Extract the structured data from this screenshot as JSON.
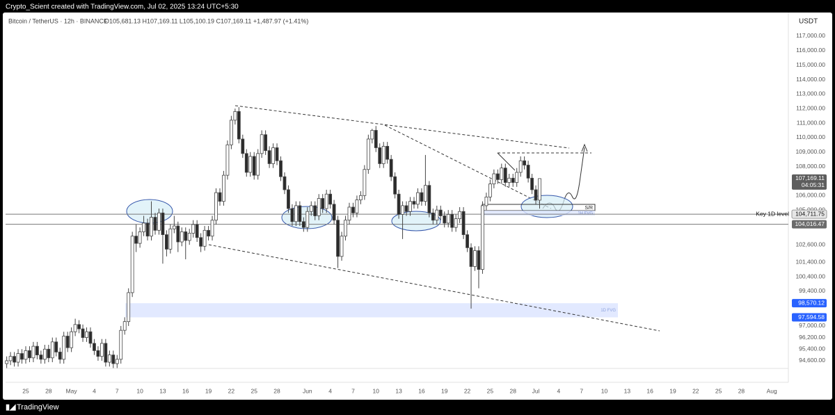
{
  "header": {
    "attribution": "Crypto_Scient created with TradingView.com, Jul 02, 2025 13:24 UTC+5:30"
  },
  "chart_data": {
    "type": "candlestick",
    "title": "Bitcoin / TetherUS · 12h · BINANCE",
    "ohlc_readout": "O105,681.13 H107,169.11 L105,100.19 C107,169.11 +1,487.97 (+1.41%)",
    "currency": "USDT",
    "colors": {
      "up": "#ffffff",
      "down": "#2b2b2b",
      "border": "#444444"
    },
    "x": [
      -2.5,
      -2,
      -1.5,
      -1,
      -0.5,
      0,
      0.5,
      1,
      1.5,
      2,
      2.5,
      3,
      3.5,
      4,
      4.5,
      5,
      5.5,
      6,
      6.5,
      7,
      7.5,
      8,
      8.5,
      9,
      9.5,
      10,
      10.5,
      11,
      11.5,
      12,
      12.5,
      13,
      13.5,
      14,
      14.5,
      15,
      15.5,
      16,
      16.5,
      17,
      17.5,
      18,
      18.5,
      19,
      19.5,
      20,
      20.5,
      21,
      21.5,
      22,
      22.5,
      23,
      23.5,
      24,
      24.5,
      25,
      25.5,
      26,
      26.5,
      27,
      27.5,
      28,
      28.5,
      29,
      29.5,
      30,
      30.5,
      31,
      31.5,
      32,
      32.5,
      33,
      33.5,
      34,
      34.5,
      35,
      35.5,
      36,
      36.5,
      37,
      37.5,
      38,
      38.5,
      39,
      39.5,
      40,
      40.5,
      41,
      41.5,
      42,
      42.5,
      43,
      43.5,
      44,
      44.5,
      45,
      45.5,
      46,
      46.5,
      47,
      47.5,
      48,
      48.5,
      49,
      49.5,
      50,
      50.5,
      51,
      51.5,
      52,
      52.5,
      53,
      53.5,
      54,
      54.5,
      55,
      55.5,
      56,
      56.5,
      57,
      57.5,
      58,
      58.5,
      59,
      59.5,
      60,
      60.5,
      61,
      61.5,
      62,
      62.5,
      63,
      63.5,
      64,
      64.5,
      65,
      65.5,
      66,
      66.5,
      67,
      67.5
    ],
    "ohlc": [
      [
        94400,
        94900,
        94100,
        94600
      ],
      [
        94600,
        95200,
        94300,
        94900
      ],
      [
        94900,
        95200,
        94200,
        94500
      ],
      [
        94500,
        95400,
        94200,
        95100
      ],
      [
        95100,
        95400,
        94400,
        94700
      ],
      [
        94700,
        95600,
        94400,
        95300
      ],
      [
        95300,
        95600,
        94500,
        94800
      ],
      [
        94800,
        95900,
        94500,
        95600
      ],
      [
        95600,
        95900,
        94700,
        95000
      ],
      [
        95000,
        95300,
        94400,
        94700
      ],
      [
        94700,
        95700,
        94400,
        95400
      ],
      [
        95400,
        95700,
        94500,
        94800
      ],
      [
        94800,
        96200,
        94500,
        95900
      ],
      [
        95900,
        96200,
        94900,
        95200
      ],
      [
        95200,
        95500,
        94400,
        94700
      ],
      [
        94700,
        96600,
        94400,
        96300
      ],
      [
        96300,
        96600,
        95200,
        95500
      ],
      [
        95500,
        96900,
        95200,
        96600
      ],
      [
        96600,
        97500,
        96300,
        97100
      ],
      [
        97100,
        97400,
        96500,
        96800
      ],
      [
        96800,
        97100,
        95900,
        96200
      ],
      [
        96200,
        96900,
        95900,
        96600
      ],
      [
        96600,
        96900,
        95500,
        95800
      ],
      [
        95800,
        96100,
        95000,
        95300
      ],
      [
        95300,
        95600,
        94600,
        94900
      ],
      [
        94900,
        96100,
        94600,
        95800
      ],
      [
        95800,
        96100,
        94200,
        94500
      ],
      [
        94500,
        95300,
        94200,
        95000
      ],
      [
        95000,
        95300,
        94100,
        94400
      ],
      [
        94400,
        95000,
        94100,
        94700
      ],
      [
        94700,
        97000,
        94400,
        96700
      ],
      [
        96700,
        97600,
        96400,
        97300
      ],
      [
        97300,
        99600,
        97000,
        99300
      ],
      [
        99300,
        103500,
        99000,
        103200
      ],
      [
        103200,
        104000,
        102100,
        102700
      ],
      [
        102700,
        103800,
        102400,
        103500
      ],
      [
        103500,
        104600,
        103200,
        104100
      ],
      [
        104100,
        104400,
        102900,
        103200
      ],
      [
        103200,
        105600,
        102900,
        104500
      ],
      [
        104500,
        104800,
        103300,
        103600
      ],
      [
        103600,
        105100,
        103300,
        104800
      ],
      [
        104800,
        105100,
        101300,
        103300
      ],
      [
        103300,
        103600,
        101800,
        102300
      ],
      [
        102300,
        104000,
        102000,
        103700
      ],
      [
        103700,
        104600,
        103400,
        103900
      ],
      [
        103900,
        104200,
        102100,
        102800
      ],
      [
        102800,
        103800,
        102500,
        103500
      ],
      [
        103500,
        103800,
        101600,
        102900
      ],
      [
        102900,
        103700,
        102600,
        103400
      ],
      [
        103400,
        104300,
        103100,
        104000
      ],
      [
        104000,
        104300,
        102800,
        103100
      ],
      [
        103100,
        103400,
        102100,
        102500
      ],
      [
        102500,
        103900,
        102200,
        103600
      ],
      [
        103600,
        103900,
        102900,
        103200
      ],
      [
        103200,
        104600,
        102900,
        104300
      ],
      [
        104300,
        106500,
        104000,
        106200
      ],
      [
        106200,
        106500,
        105300,
        105600
      ],
      [
        105600,
        107700,
        105300,
        107400
      ],
      [
        107400,
        109800,
        107100,
        109500
      ],
      [
        109500,
        111500,
        109200,
        111200
      ],
      [
        111200,
        112000,
        110900,
        111800
      ],
      [
        111800,
        112100,
        109600,
        109900
      ],
      [
        109900,
        110200,
        108600,
        108900
      ],
      [
        108900,
        109200,
        107300,
        107600
      ],
      [
        107600,
        109000,
        107300,
        108700
      ],
      [
        108700,
        109000,
        107100,
        107400
      ],
      [
        107400,
        109200,
        107100,
        108900
      ],
      [
        108900,
        110500,
        108600,
        110200
      ],
      [
        110200,
        110500,
        108800,
        109100
      ],
      [
        109100,
        109400,
        107900,
        108200
      ],
      [
        108200,
        109600,
        107900,
        109300
      ],
      [
        109300,
        109600,
        108100,
        108400
      ],
      [
        108400,
        108700,
        107000,
        107300
      ],
      [
        107300,
        107600,
        106100,
        106400
      ],
      [
        106400,
        106700,
        104800,
        105100
      ],
      [
        105100,
        105400,
        103900,
        104200
      ],
      [
        104200,
        105600,
        103900,
        105300
      ],
      [
        105300,
        105600,
        103900,
        104200
      ],
      [
        104200,
        104500,
        103500,
        103800
      ],
      [
        103800,
        105200,
        103500,
        104900
      ],
      [
        104900,
        105600,
        104600,
        105300
      ],
      [
        105300,
        105600,
        104300,
        104600
      ],
      [
        104600,
        106100,
        104300,
        105800
      ],
      [
        105800,
        106100,
        104800,
        105100
      ],
      [
        105100,
        106400,
        104800,
        106100
      ],
      [
        106100,
        106400,
        105100,
        105400
      ],
      [
        105400,
        105700,
        104000,
        104300
      ],
      [
        104300,
        104600,
        101000,
        101800
      ],
      [
        101800,
        103500,
        101500,
        103200
      ],
      [
        103200,
        104600,
        102900,
        104300
      ],
      [
        104300,
        105500,
        104000,
        105200
      ],
      [
        105200,
        105500,
        104500,
        104800
      ],
      [
        104800,
        106000,
        104500,
        105700
      ],
      [
        105700,
        106300,
        105400,
        106000
      ],
      [
        106000,
        108100,
        105700,
        107800
      ],
      [
        107800,
        110200,
        107500,
        109900
      ],
      [
        109900,
        110600,
        109600,
        110500
      ],
      [
        110500,
        110800,
        109000,
        109300
      ],
      [
        109300,
        109600,
        107900,
        108200
      ],
      [
        108200,
        109700,
        107900,
        109400
      ],
      [
        109400,
        109700,
        108200,
        108500
      ],
      [
        108500,
        108800,
        107000,
        107300
      ],
      [
        107300,
        107600,
        105800,
        106100
      ],
      [
        106100,
        106400,
        104400,
        104700
      ],
      [
        104700,
        105600,
        103000,
        105300
      ],
      [
        105300,
        105600,
        104600,
        104900
      ],
      [
        104900,
        105900,
        104600,
        105600
      ],
      [
        105600,
        105900,
        105100,
        105400
      ],
      [
        105400,
        106500,
        105100,
        106200
      ],
      [
        106200,
        106500,
        105300,
        105600
      ],
      [
        105600,
        108800,
        105300,
        106700
      ],
      [
        106700,
        107000,
        104500,
        104800
      ],
      [
        104800,
        105100,
        104000,
        104300
      ],
      [
        104300,
        105300,
        104000,
        105000
      ],
      [
        105000,
        105300,
        104300,
        104600
      ],
      [
        104600,
        104900,
        103800,
        104100
      ],
      [
        104100,
        105000,
        103800,
        104700
      ],
      [
        104700,
        105000,
        103500,
        103800
      ],
      [
        103800,
        104700,
        103500,
        104400
      ],
      [
        104400,
        105200,
        104100,
        104900
      ],
      [
        104900,
        105200,
        103000,
        103300
      ],
      [
        103300,
        103600,
        102100,
        102400
      ],
      [
        102400,
        102700,
        98200,
        101100
      ],
      [
        101100,
        102500,
        100800,
        102200
      ],
      [
        102200,
        102500,
        99600,
        100900
      ],
      [
        100900,
        105600,
        100600,
        105300
      ],
      [
        105300,
        106200,
        105000,
        105900
      ],
      [
        105900,
        107100,
        105600,
        106800
      ],
      [
        106800,
        107800,
        106500,
        107500
      ],
      [
        107500,
        107800,
        106800,
        107100
      ],
      [
        107100,
        108200,
        106800,
        107900
      ],
      [
        107900,
        108200,
        106600,
        106900
      ],
      [
        106900,
        107500,
        106600,
        107200
      ],
      [
        107200,
        107500,
        106600,
        106900
      ],
      [
        106900,
        107900,
        106600,
        107600
      ],
      [
        107600,
        108700,
        107300,
        108400
      ],
      [
        108400,
        108700,
        107800,
        108100
      ],
      [
        108100,
        108400,
        106900,
        107200
      ],
      [
        107200,
        107500,
        106100,
        106400
      ],
      [
        106400,
        106700,
        105400,
        105681.13
      ],
      [
        105681.13,
        107169.11,
        105100.19,
        107169.11
      ]
    ],
    "xlim": [
      -2.65,
      99.9
    ],
    "xticks": [
      {
        "value": 0,
        "label": "25"
      },
      {
        "value": 3,
        "label": "28"
      },
      {
        "value": 6,
        "label": "May"
      },
      {
        "value": 9,
        "label": "4"
      },
      {
        "value": 12,
        "label": "7"
      },
      {
        "value": 15,
        "label": "10"
      },
      {
        "value": 18,
        "label": "13"
      },
      {
        "value": 21,
        "label": "16"
      },
      {
        "value": 24,
        "label": "19"
      },
      {
        "value": 27,
        "label": "22"
      },
      {
        "value": 30,
        "label": "25"
      },
      {
        "value": 33,
        "label": "28"
      },
      {
        "value": 37,
        "label": "Jun"
      },
      {
        "value": 40,
        "label": "4"
      },
      {
        "value": 43,
        "label": "7"
      },
      {
        "value": 46,
        "label": "10"
      },
      {
        "value": 49,
        "label": "13"
      },
      {
        "value": 52,
        "label": "16"
      },
      {
        "value": 55,
        "label": "19"
      },
      {
        "value": 58,
        "label": "22"
      },
      {
        "value": 61,
        "label": "25"
      },
      {
        "value": 64,
        "label": "28"
      },
      {
        "value": 67,
        "label": "Jul"
      },
      {
        "value": 70,
        "label": "4"
      },
      {
        "value": 73,
        "label": "7"
      },
      {
        "value": 76,
        "label": "10"
      },
      {
        "value": 79,
        "label": "13"
      },
      {
        "value": 82,
        "label": "16"
      },
      {
        "value": 85,
        "label": "19"
      },
      {
        "value": 88,
        "label": "22"
      },
      {
        "value": 91,
        "label": "25"
      },
      {
        "value": 94,
        "label": "28"
      },
      {
        "value": 98,
        "label": "Aug"
      }
    ],
    "ylim": [
      94070,
      118630
    ],
    "yticks": [
      {
        "value": 117000,
        "label": "117,000.00"
      },
      {
        "value": 116000,
        "label": "116,000.00"
      },
      {
        "value": 115000,
        "label": "115,000.00"
      },
      {
        "value": 114000,
        "label": "114,000.00"
      },
      {
        "value": 113000,
        "label": "113,000.00"
      },
      {
        "value": 112000,
        "label": "112,000.00"
      },
      {
        "value": 111000,
        "label": "111,000.00"
      },
      {
        "value": 110000,
        "label": "110,000.00"
      },
      {
        "value": 109000,
        "label": "109,000.00"
      },
      {
        "value": 108000,
        "label": "108,000.00"
      },
      {
        "value": 106000,
        "label": "106,000.00"
      },
      {
        "value": 105000,
        "label": "105,000.00"
      },
      {
        "value": 102600,
        "label": "102,600.00"
      },
      {
        "value": 101400,
        "label": "101,400.00"
      },
      {
        "value": 100400,
        "label": "100,400.00"
      },
      {
        "value": 99400,
        "label": "99,400.00"
      },
      {
        "value": 97000,
        "label": "97,000.00"
      },
      {
        "value": 96200,
        "label": "96,200.00"
      },
      {
        "value": 95400,
        "label": "95,400.00"
      },
      {
        "value": 94600,
        "label": "94,600.00"
      }
    ],
    "price_labels": [
      {
        "value": 107169.11,
        "label": "107,169.11",
        "color": "#5d5d5d"
      },
      {
        "value": 104711.75,
        "label": "104,711.75",
        "color": "#e6e6e6"
      },
      {
        "value": 104016.47,
        "label": "104,016.47",
        "color": "#6b6b6b"
      },
      {
        "value": 98570.12,
        "label": "98,570.12",
        "color": "#2962ff"
      },
      {
        "value": 97594.58,
        "label": "97,594.58",
        "color": "#2962ff"
      }
    ],
    "countdown": "04:05:31",
    "annotations": {
      "key_level": "Key 1D level",
      "sr": "S/R",
      "fvg_1h": "1H FVG",
      "fvg_1d": "1D FVG"
    }
  },
  "footer": {
    "brand": "TradingView"
  }
}
